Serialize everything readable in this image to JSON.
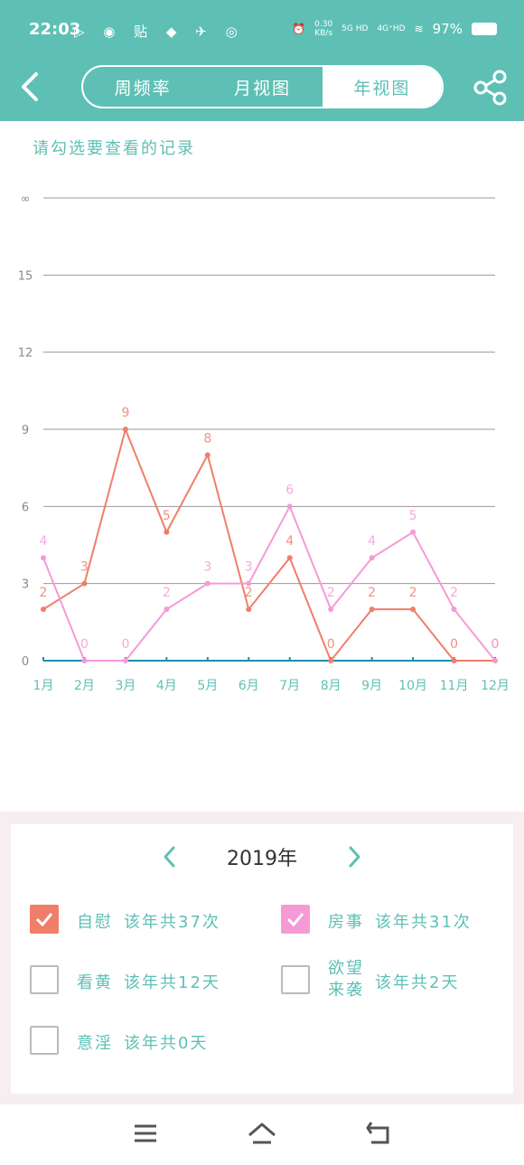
{
  "status": {
    "time": "22:03",
    "left_icons": "▷ ◉ 贴 ◆ ✈ ◎",
    "net_speed": "0.30",
    "net_unit": "KB/s",
    "signal1": "5G HD",
    "signal2": "4G⁺HD",
    "battery": "97%"
  },
  "header": {
    "tabs": [
      "周频率",
      "月视图",
      "年视图"
    ],
    "active_tab": 2
  },
  "hint": "请勾选要查看的记录",
  "colors": {
    "primary": "#5ec0b5",
    "orange": "#f07e68",
    "pink": "#f59ad7",
    "baseline": "#1a8fb0"
  },
  "chart_data": {
    "type": "line",
    "categories": [
      "1月",
      "2月",
      "3月",
      "4月",
      "5月",
      "6月",
      "7月",
      "8月",
      "9月",
      "10月",
      "11月",
      "12月"
    ],
    "y_ticks": [
      "0",
      "3",
      "6",
      "9",
      "12",
      "15",
      "∞"
    ],
    "ylim": [
      0,
      18
    ],
    "grid": true,
    "series": [
      {
        "name": "自慰",
        "color": "#f07e68",
        "values": [
          2,
          3,
          9,
          5,
          8,
          2,
          4,
          0,
          2,
          2,
          0,
          0
        ]
      },
      {
        "name": "房事",
        "color": "#f59ad7",
        "values": [
          4,
          0,
          0,
          2,
          3,
          3,
          6,
          2,
          4,
          5,
          2,
          0
        ]
      }
    ]
  },
  "year": {
    "label": "2019年"
  },
  "records": [
    {
      "name": "自慰",
      "stat": "该年共37次",
      "checked": true,
      "color": "orange"
    },
    {
      "name": "房事",
      "stat": "该年共31次",
      "checked": true,
      "color": "pink"
    },
    {
      "name": "看黄",
      "stat": "该年共12天",
      "checked": false
    },
    {
      "name": "欲望来袭",
      "name_line1": "欲望",
      "name_line2": "来袭",
      "stat": "该年共2天",
      "checked": false
    },
    {
      "name": "意淫",
      "stat": "该年共0天",
      "checked": false
    }
  ]
}
